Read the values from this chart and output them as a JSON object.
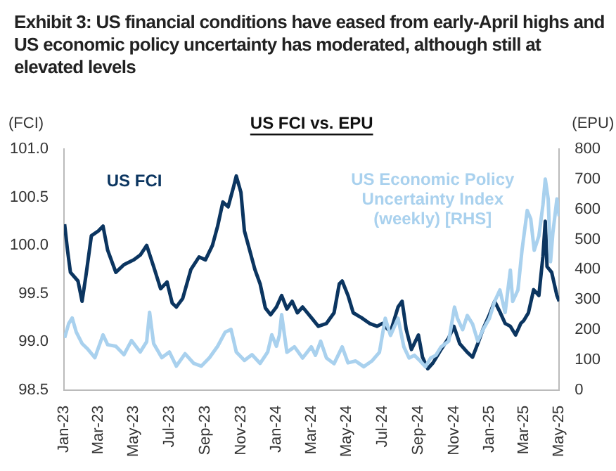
{
  "chart_data": {
    "type": "line",
    "title": "Exhibit 3: US financial conditions have eased from early-April highs and US economic policy uncertainty has moderated, although still at elevated levels",
    "subtitle": "US FCI vs. EPU",
    "ylabel": "(FCI)",
    "y2label": "(EPU)",
    "xlim": [
      "2023-01-01",
      "2025-05-01"
    ],
    "xticks": [
      {
        "value": "2023-01",
        "label": "Jan-23"
      },
      {
        "value": "2023-03",
        "label": "Mar-23"
      },
      {
        "value": "2023-05",
        "label": "May-23"
      },
      {
        "value": "2023-07",
        "label": "Jul-23"
      },
      {
        "value": "2023-09",
        "label": "Sep-23"
      },
      {
        "value": "2023-11",
        "label": "Nov-23"
      },
      {
        "value": "2024-01",
        "label": "Jan-24"
      },
      {
        "value": "2024-03",
        "label": "Mar-24"
      },
      {
        "value": "2024-05",
        "label": "May-24"
      },
      {
        "value": "2024-07",
        "label": "Jul-24"
      },
      {
        "value": "2024-09",
        "label": "Sep-24"
      },
      {
        "value": "2024-11",
        "label": "Nov-24"
      },
      {
        "value": "2025-01",
        "label": "Jan-25"
      },
      {
        "value": "2025-03",
        "label": "Mar-25"
      },
      {
        "value": "2025-05",
        "label": "May-25"
      }
    ],
    "ylim": [
      98.5,
      101
    ],
    "yticks": [
      {
        "value": 98.5,
        "label": "98.5"
      },
      {
        "value": 99,
        "label": "99.0"
      },
      {
        "value": 99.5,
        "label": "99.5"
      },
      {
        "value": 100,
        "label": "100.0"
      },
      {
        "value": 100.5,
        "label": "100.5"
      },
      {
        "value": 101,
        "label": "101.0"
      }
    ],
    "y2lim": [
      0,
      800
    ],
    "y2ticks": [
      0,
      100,
      200,
      300,
      400,
      500,
      600,
      700,
      800
    ],
    "grid": false,
    "legend": false,
    "marker": "none",
    "line_style": "solid",
    "series": [
      {
        "name": "US Economic Policy Uncertainty Index (weekly) [RHS]",
        "color": "#a9d1ee",
        "axis": "y2",
        "x": [
          "2023-01-02",
          "2023-01-09",
          "2023-01-15",
          "2023-01-22",
          "2023-02-01",
          "2023-02-11",
          "2023-02-23",
          "2023-03-09",
          "2023-03-17",
          "2023-03-31",
          "2023-04-14",
          "2023-04-27",
          "2023-05-12",
          "2023-05-23",
          "2023-05-28",
          "2023-06-04",
          "2023-06-18",
          "2023-07-01",
          "2023-07-13",
          "2023-07-28",
          "2023-08-12",
          "2023-08-25",
          "2023-09-08",
          "2023-09-22",
          "2023-10-05",
          "2023-10-15",
          "2023-10-24",
          "2023-11-07",
          "2023-11-20",
          "2023-12-04",
          "2023-12-17",
          "2023-12-24",
          "2024-01-01",
          "2024-01-06",
          "2024-01-10",
          "2024-01-19",
          "2024-02-01",
          "2024-02-15",
          "2024-03-01",
          "2024-03-08",
          "2024-03-17",
          "2024-03-27",
          "2024-04-09",
          "2024-04-23",
          "2024-05-03",
          "2024-05-16",
          "2024-05-30",
          "2024-06-13",
          "2024-06-26",
          "2024-07-06",
          "2024-07-15",
          "2024-07-28",
          "2024-08-07",
          "2024-08-16",
          "2024-08-25",
          "2024-09-04",
          "2024-09-13",
          "2024-09-22",
          "2024-10-01",
          "2024-10-10",
          "2024-10-23",
          "2024-11-02",
          "2024-11-07",
          "2024-11-16",
          "2024-11-24",
          "2024-12-03",
          "2024-12-12",
          "2024-12-21",
          "2025-01-01",
          "2025-01-10",
          "2025-01-19",
          "2025-01-28",
          "2025-02-06",
          "2025-02-10",
          "2025-02-19",
          "2025-02-26",
          "2025-03-07",
          "2025-03-13",
          "2025-03-19",
          "2025-03-27",
          "2025-04-03",
          "2025-04-07",
          "2025-04-12",
          "2025-04-16",
          "2025-04-20",
          "2025-04-27",
          "2025-05-01"
        ],
        "values": [
          173,
          220,
          239,
          192,
          154,
          135,
          107,
          183,
          150,
          145,
          117,
          164,
          126,
          160,
          258,
          154,
          107,
          126,
          79,
          120,
          88,
          79,
          107,
          145,
          192,
          201,
          126,
          98,
          117,
          88,
          126,
          183,
          145,
          181,
          250,
          125,
          143,
          106,
          143,
          115,
          162,
          106,
          87,
          143,
          90,
          96,
          77,
          96,
          125,
          238,
          181,
          238,
          143,
          106,
          115,
          96,
          77,
          106,
          115,
          143,
          162,
          275,
          238,
          200,
          247,
          219,
          162,
          200,
          238,
          294,
          332,
          257,
          398,
          294,
          332,
          464,
          596,
          568,
          464,
          511,
          615,
          700,
          634,
          426,
          521,
          634,
          577
        ]
      },
      {
        "name": "US FCI",
        "color": "#0b3560",
        "axis": "y",
        "x": [
          "2023-01-02",
          "2023-01-07",
          "2023-01-12",
          "2023-01-25",
          "2023-02-01",
          "2023-02-08",
          "2023-02-17",
          "2023-03-01",
          "2023-03-09",
          "2023-03-17",
          "2023-03-31",
          "2023-04-14",
          "2023-05-01",
          "2023-05-12",
          "2023-05-23",
          "2023-06-04",
          "2023-06-16",
          "2023-06-27",
          "2023-07-06",
          "2023-07-13",
          "2023-07-24",
          "2023-08-07",
          "2023-08-21",
          "2023-09-01",
          "2023-09-13",
          "2023-09-22",
          "2023-10-01",
          "2023-10-10",
          "2023-10-19",
          "2023-10-24",
          "2023-11-01",
          "2023-11-07",
          "2023-11-16",
          "2023-11-25",
          "2023-12-04",
          "2023-12-13",
          "2023-12-22",
          "2024-01-01",
          "2024-01-10",
          "2024-01-19",
          "2024-01-28",
          "2024-02-06",
          "2024-02-15",
          "2024-03-01",
          "2024-03-13",
          "2024-03-27",
          "2024-04-09",
          "2024-04-18",
          "2024-04-23",
          "2024-05-03",
          "2024-05-12",
          "2024-05-26",
          "2024-06-09",
          "2024-06-22",
          "2024-07-01",
          "2024-07-15",
          "2024-07-28",
          "2024-08-04",
          "2024-08-11",
          "2024-08-20",
          "2024-09-01",
          "2024-09-08",
          "2024-09-17",
          "2024-09-26",
          "2024-10-10",
          "2024-10-23",
          "2024-11-01",
          "2024-11-11",
          "2024-11-24",
          "2024-12-03",
          "2024-12-12",
          "2024-12-21",
          "2025-01-01",
          "2025-01-10",
          "2025-01-19",
          "2025-01-28",
          "2025-02-06",
          "2025-02-15",
          "2025-02-24",
          "2025-03-01",
          "2025-03-09",
          "2025-03-18",
          "2025-03-27",
          "2025-04-03",
          "2025-04-07",
          "2025-04-10",
          "2025-04-18",
          "2025-04-27",
          "2025-05-01"
        ],
        "values": [
          100.22,
          99.95,
          99.72,
          99.63,
          99.42,
          99.7,
          100.1,
          100.15,
          100.2,
          99.95,
          99.72,
          99.8,
          99.85,
          99.9,
          100.0,
          99.78,
          99.55,
          99.62,
          99.4,
          99.36,
          99.45,
          99.75,
          99.88,
          99.85,
          100.0,
          100.2,
          100.45,
          100.4,
          100.6,
          100.72,
          100.55,
          100.15,
          99.95,
          99.75,
          99.6,
          99.35,
          99.28,
          99.36,
          99.48,
          99.34,
          99.42,
          99.3,
          99.36,
          99.25,
          99.16,
          99.19,
          99.3,
          99.6,
          99.63,
          99.48,
          99.3,
          99.25,
          99.19,
          99.16,
          99.19,
          99.1,
          99.36,
          99.42,
          99.13,
          98.92,
          99.07,
          98.84,
          98.72,
          98.78,
          98.92,
          99.04,
          99.16,
          98.98,
          98.89,
          98.84,
          98.98,
          99.13,
          99.28,
          99.42,
          99.31,
          99.19,
          99.16,
          99.07,
          99.19,
          99.22,
          99.3,
          99.54,
          99.48,
          99.89,
          100.25,
          99.78,
          99.72,
          99.48,
          99.42
        ]
      }
    ]
  }
}
